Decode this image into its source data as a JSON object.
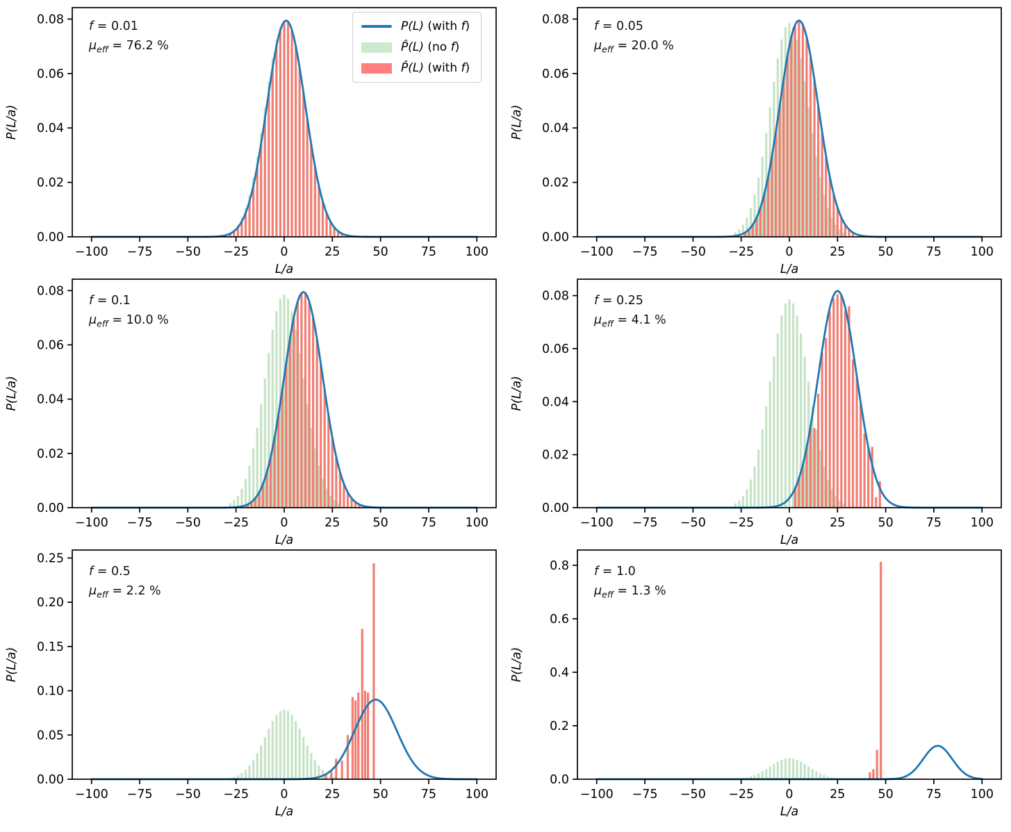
{
  "figure": {
    "background": "#ffffff",
    "description_texts": []
  },
  "colors": {
    "line": "#1f77b4",
    "bar_no_f": "#c6e3c6",
    "bar_with_f": "#f27d72",
    "legend_green": "#cfe8cf",
    "legend_red": "#ff7f7f",
    "axis": "#000000",
    "legend_border": "#cfcfcf"
  },
  "annotation_labels": {
    "f_var": "f",
    "mu_var": "μ",
    "mu_sub": "eff"
  },
  "legend": {
    "items": [
      {
        "type": "line",
        "pre": "P(L)",
        "mid": " (with ",
        "fvar": "f",
        "post": ")"
      },
      {
        "type": "green",
        "pre": "P̂(L)",
        "mid": " (no ",
        "fvar": "f",
        "post": ")"
      },
      {
        "type": "red",
        "pre": "P̂(L)",
        "mid": " (with ",
        "fvar": "f",
        "post": ")"
      }
    ]
  },
  "green_bars_shared": {
    "x": [
      -28,
      -26,
      -24,
      -22,
      -20,
      -18,
      -16,
      -14,
      -12,
      -10,
      -8,
      -6,
      -4,
      -2,
      0,
      2,
      4,
      6,
      8,
      10,
      12,
      14,
      16,
      18,
      20,
      22,
      24,
      26,
      28
    ],
    "h": [
      0.0016,
      0.0027,
      0.0044,
      0.007,
      0.0106,
      0.0155,
      0.0218,
      0.0295,
      0.0382,
      0.0476,
      0.057,
      0.0656,
      0.0725,
      0.077,
      0.0785,
      0.077,
      0.0725,
      0.0656,
      0.057,
      0.0476,
      0.0382,
      0.0295,
      0.0218,
      0.0155,
      0.0106,
      0.007,
      0.0044,
      0.0027,
      0.0016
    ]
  },
  "chart_data": [
    {
      "type": "bar+line",
      "annotation": {
        "f_rest": " = 0.01",
        "mu_rest": " = 76.2 %"
      },
      "xlabel": "L/a",
      "ylabel": "P(L/a)",
      "xlim": [
        -110,
        110
      ],
      "ymax": 0.0842,
      "xticks": [
        -100,
        -75,
        -50,
        -25,
        0,
        25,
        50,
        75,
        100
      ],
      "xtick_labels": [
        "−100",
        "−75",
        "−50",
        "−25",
        "0",
        "25",
        "50",
        "75",
        "100"
      ],
      "yticks": [
        0,
        0.02,
        0.04,
        0.06,
        0.08
      ],
      "ytick_labels": [
        "0.00",
        "0.02",
        "0.04",
        "0.06",
        "0.08"
      ],
      "line": {
        "mu": 1,
        "sigma": 10,
        "peak": 0.0795
      },
      "red_bars": {
        "x": [
          -28,
          -26,
          -24,
          -22,
          -20,
          -18,
          -16,
          -14,
          -12,
          -10,
          -8,
          -6,
          -4,
          -2,
          0,
          2,
          4,
          6,
          8,
          10,
          12,
          14,
          16,
          18,
          20,
          22,
          24,
          26,
          28,
          30
        ],
        "h": [
          0.0012,
          0.0021,
          0.0035,
          0.0056,
          0.0087,
          0.013,
          0.0187,
          0.0257,
          0.034,
          0.0433,
          0.0528,
          0.062,
          0.0699,
          0.0757,
          0.0788,
          0.0788,
          0.0757,
          0.0699,
          0.062,
          0.0528,
          0.0433,
          0.034,
          0.0257,
          0.0187,
          0.013,
          0.0087,
          0.0056,
          0.0035,
          0.0021,
          0.0012
        ]
      },
      "has_legend": true
    },
    {
      "type": "bar+line",
      "annotation": {
        "f_rest": " = 0.05",
        "mu_rest": " = 20.0 %"
      },
      "xlabel": "L/a",
      "ylabel": "P(L/a)",
      "xlim": [
        -110,
        110
      ],
      "ymax": 0.0842,
      "xticks": [
        -100,
        -75,
        -50,
        -25,
        0,
        25,
        50,
        75,
        100
      ],
      "xtick_labels": [
        "−100",
        "−75",
        "−50",
        "−25",
        "0",
        "25",
        "50",
        "75",
        "100"
      ],
      "yticks": [
        0,
        0.02,
        0.04,
        0.06,
        0.08
      ],
      "ytick_labels": [
        "0.00",
        "0.02",
        "0.04",
        "0.06",
        "0.08"
      ],
      "line": {
        "mu": 5,
        "sigma": 10,
        "peak": 0.0795
      },
      "red_bars": {
        "x": [
          -23,
          -21,
          -19,
          -17,
          -15,
          -13,
          -11,
          -9,
          -7,
          -5,
          -3,
          -1,
          1,
          3,
          5,
          7,
          9,
          11,
          13,
          15,
          17,
          19,
          21,
          23,
          25,
          27,
          29,
          31,
          33
        ],
        "h": [
          0.0016,
          0.0027,
          0.0044,
          0.007,
          0.0107,
          0.0156,
          0.0219,
          0.0296,
          0.0384,
          0.0479,
          0.0574,
          0.0661,
          0.073,
          0.0774,
          0.079,
          0.0774,
          0.073,
          0.0661,
          0.0574,
          0.0479,
          0.0384,
          0.0296,
          0.0219,
          0.0156,
          0.0107,
          0.007,
          0.0044,
          0.0027,
          0.0016
        ]
      },
      "has_legend": false
    },
    {
      "type": "bar+line",
      "annotation": {
        "f_rest": " = 0.1",
        "mu_rest": " = 10.0 %"
      },
      "xlabel": "L/a",
      "ylabel": "P(L/a)",
      "xlim": [
        -110,
        110
      ],
      "ymax": 0.0842,
      "xticks": [
        -100,
        -75,
        -50,
        -25,
        0,
        25,
        50,
        75,
        100
      ],
      "xtick_labels": [
        "−100",
        "−75",
        "−50",
        "−25",
        "0",
        "25",
        "50",
        "75",
        "100"
      ],
      "yticks": [
        0,
        0.02,
        0.04,
        0.06,
        0.08
      ],
      "ytick_labels": [
        "0.00",
        "0.02",
        "0.04",
        "0.06",
        "0.08"
      ],
      "line": {
        "mu": 10,
        "sigma": 10,
        "peak": 0.0795
      },
      "red_bars": {
        "x": [
          -19,
          -17,
          -15,
          -13,
          -11,
          -9,
          -7,
          -5,
          -3,
          -1,
          1,
          3,
          5,
          7,
          9,
          11,
          13,
          15,
          17,
          19,
          21,
          23,
          25,
          27,
          29,
          31,
          33,
          35,
          37,
          39
        ],
        "h": [
          0.0012,
          0.002,
          0.0034,
          0.0055,
          0.0086,
          0.0129,
          0.0186,
          0.0257,
          0.0341,
          0.0434,
          0.0529,
          0.0621,
          0.0698,
          0.0757,
          0.079,
          0.079,
          0.0757,
          0.0698,
          0.0621,
          0.0529,
          0.0434,
          0.0341,
          0.0257,
          0.0186,
          0.0129,
          0.0086,
          0.0055,
          0.0034,
          0.002,
          0.0012
        ]
      },
      "has_legend": false
    },
    {
      "type": "bar+line",
      "annotation": {
        "f_rest": " = 0.25",
        "mu_rest": " = 4.1 %"
      },
      "xlabel": "L/a",
      "ylabel": "P(L/a)",
      "xlim": [
        -110,
        110
      ],
      "ymax": 0.0862,
      "xticks": [
        -100,
        -75,
        -50,
        -25,
        0,
        25,
        50,
        75,
        100
      ],
      "xtick_labels": [
        "−100",
        "−75",
        "−50",
        "−25",
        "0",
        "25",
        "50",
        "75",
        "100"
      ],
      "yticks": [
        0,
        0.02,
        0.04,
        0.06,
        0.08
      ],
      "ytick_labels": [
        "0.00",
        "0.02",
        "0.04",
        "0.06",
        "0.08"
      ],
      "line": {
        "mu": 25,
        "sigma": 10,
        "peak": 0.0818
      },
      "red_bars": {
        "x": [
          3,
          5,
          7,
          9,
          11,
          13,
          15,
          17,
          19,
          21,
          23,
          25,
          27,
          29,
          31,
          33,
          35,
          37,
          39,
          41,
          43,
          45,
          47
        ],
        "h": [
          0.0071,
          0.0109,
          0.0159,
          0.0224,
          0.0302,
          0.03,
          0.043,
          0.0585,
          0.064,
          0.0743,
          0.0789,
          0.0805,
          0.08,
          0.0743,
          0.076,
          0.056,
          0.0488,
          0.0392,
          0.028,
          0.0224,
          0.023,
          0.004,
          0.01
        ]
      },
      "has_legend": false
    },
    {
      "type": "bar+line",
      "annotation": {
        "f_rest": " = 0.5",
        "mu_rest": " = 2.2 %"
      },
      "xlabel": "L/a",
      "ylabel": "P(L/a)",
      "xlim": [
        -110,
        110
      ],
      "ymax": 0.259,
      "xticks": [
        -100,
        -75,
        -50,
        -25,
        0,
        25,
        50,
        75,
        100
      ],
      "xtick_labels": [
        "−100",
        "−75",
        "−50",
        "−25",
        "0",
        "25",
        "50",
        "75",
        "100"
      ],
      "yticks": [
        0,
        0.05,
        0.1,
        0.15,
        0.2,
        0.25
      ],
      "ytick_labels": [
        "0.00",
        "0.05",
        "0.10",
        "0.15",
        "0.20",
        "0.25"
      ],
      "line": {
        "mu": 47.5,
        "sigma": 11,
        "peak": 0.09
      },
      "red_bars": {
        "x": [
          21.5,
          24.5,
          27,
          30,
          33,
          35.5,
          37,
          38.5,
          40.5,
          42,
          43.5,
          46.5
        ],
        "h": [
          0.005,
          0.009,
          0.023,
          0.021,
          0.05,
          0.093,
          0.089,
          0.098,
          0.17,
          0.1,
          0.098,
          0.244
        ]
      },
      "has_legend": false
    },
    {
      "type": "bar+line",
      "annotation": {
        "f_rest": " = 1.0",
        "mu_rest": " = 1.3 %"
      },
      "xlabel": "L/a",
      "ylabel": "P(L/a)",
      "xlim": [
        -110,
        110
      ],
      "ymax": 0.857,
      "xticks": [
        -100,
        -75,
        -50,
        -25,
        0,
        25,
        50,
        75,
        100
      ],
      "xtick_labels": [
        "−100",
        "−75",
        "−50",
        "−25",
        "0",
        "25",
        "50",
        "75",
        "100"
      ],
      "yticks": [
        0,
        0.2,
        0.4,
        0.6,
        0.8
      ],
      "ytick_labels": [
        "0.0",
        "0.2",
        "0.4",
        "0.6",
        "0.8"
      ],
      "line": {
        "mu": 77,
        "sigma": 7.5,
        "peak": 0.125
      },
      "red_bars": {
        "x": [
          41.8,
          43.6,
          45.5,
          47.5
        ],
        "h": [
          0.026,
          0.038,
          0.11,
          0.813
        ]
      },
      "has_legend": false
    }
  ]
}
